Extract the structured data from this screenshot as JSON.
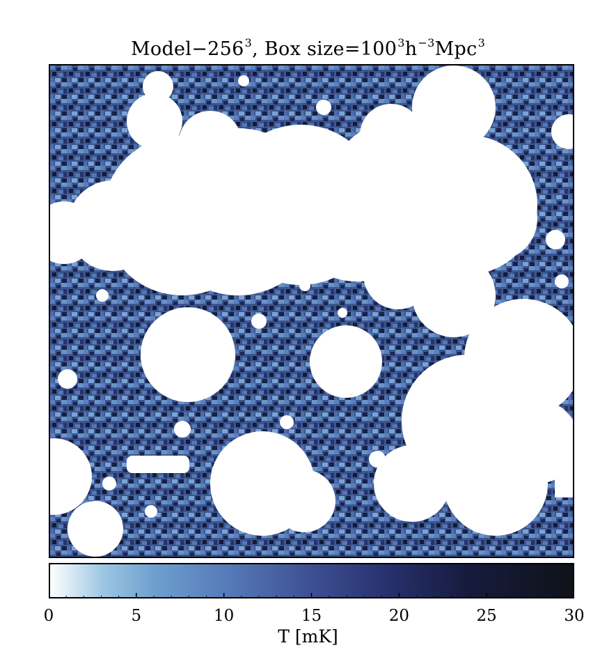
{
  "chart_data": {
    "type": "heatmap",
    "title": {
      "prefix": "Model−256",
      "prefix_exp": "3",
      "middle": ", Box size=100",
      "middle_exp": "3",
      "unit1": "h",
      "unit1_exp": "−3",
      "unit2": "Mpc",
      "unit2_exp": "3"
    },
    "colorbar": {
      "label": "T [mK]",
      "range": [
        0,
        30
      ],
      "ticks": [
        "0",
        "5",
        "10",
        "15",
        "20",
        "25",
        "30"
      ],
      "colormap": [
        "#ffffff",
        "#9ec7e4",
        "#6d9fcf",
        "#5577b6",
        "#3d4f93",
        "#27306c",
        "#161b3d",
        "#0f1218"
      ]
    },
    "axes": {
      "x_tick_labels": false,
      "y_tick_labels": false
    },
    "map": {
      "description_visible": "ionized regions shown as white (T=0)",
      "dominant_color": "#3d5a94"
    }
  }
}
